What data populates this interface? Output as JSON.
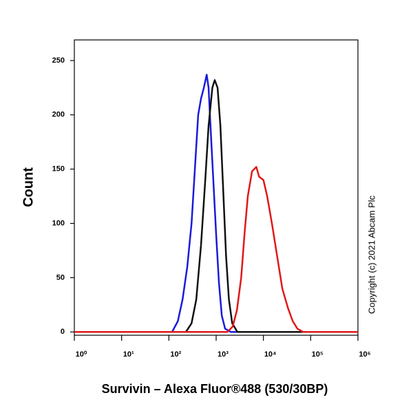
{
  "chart_data": {
    "type": "line",
    "xlabel": "Survivin – Alexa Fluor®488 (530/30BP)",
    "ylabel": "Count",
    "annotation": "Copyright (c) 2021 Abcam Plc",
    "xscale": "log",
    "xlim": [
      1,
      1000000
    ],
    "xticks": [
      {
        "value": 1,
        "label": "10⁰"
      },
      {
        "value": 10,
        "label": "10¹"
      },
      {
        "value": 100,
        "label": "10²"
      },
      {
        "value": 1000,
        "label": "10³"
      },
      {
        "value": 10000,
        "label": "10⁴"
      },
      {
        "value": 100000,
        "label": "10⁵"
      },
      {
        "value": 1000000,
        "label": "10⁶"
      }
    ],
    "ylim": [
      -3,
      269
    ],
    "yticks": [
      0,
      50,
      100,
      150,
      200,
      250
    ],
    "series": [
      {
        "color": "#1a1adc",
        "x": [
          1,
          117,
          155,
          195,
          245,
          302,
          355,
          417,
          479,
          550,
          631,
          692,
          759,
          871,
          1000,
          1148,
          1318,
          1549,
          2042,
          1000000
        ],
        "values": [
          0,
          0,
          10,
          30,
          60,
          100,
          150,
          200,
          215,
          225,
          237,
          225,
          190,
          140,
          90,
          45,
          15,
          3,
          0,
          0
        ]
      },
      {
        "color": "#111111",
        "x": [
          1,
          229,
          302,
          380,
          479,
          589,
          692,
          832,
          933,
          1072,
          1230,
          1413,
          1622,
          1862,
          2188,
          2818,
          1000000
        ],
        "values": [
          0,
          0,
          8,
          30,
          80,
          140,
          190,
          225,
          232,
          225,
          190,
          130,
          70,
          30,
          8,
          0,
          0
        ]
      },
      {
        "color": "#e01818",
        "x": [
          1,
          1738,
          2239,
          2754,
          3388,
          3981,
          4677,
          5754,
          7079,
          8128,
          10000,
          12023,
          15136,
          19498,
          25119,
          33113,
          41687,
          52481,
          69183,
          1000000
        ],
        "values": [
          0,
          0,
          5,
          20,
          50,
          90,
          125,
          148,
          152,
          143,
          140,
          125,
          100,
          70,
          40,
          22,
          10,
          3,
          0,
          0
        ]
      }
    ]
  }
}
